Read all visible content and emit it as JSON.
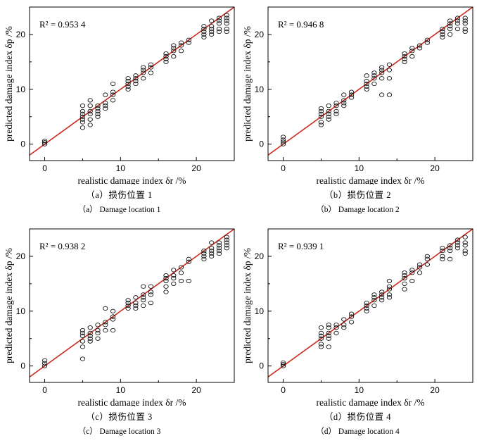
{
  "chart_data": [
    {
      "type": "scatter",
      "xlabel": "realistic damage index δr /%",
      "ylabel": "predicted damage index δp /%",
      "xlim": [
        -2,
        25
      ],
      "ylim": [
        -3,
        25
      ],
      "xticks": [
        0,
        10,
        20
      ],
      "yticks": [
        0,
        10,
        20
      ],
      "r2_label": "R² = 0.953 4",
      "caption_cn": "（a）损伤位置 1",
      "caption_en": "（a） Damage location 1",
      "fit_line": {
        "x": [
          -2,
          25
        ],
        "y": [
          -2,
          25
        ],
        "color": "#cc2a1e"
      },
      "x": [
        0,
        0,
        0,
        5,
        5,
        5,
        5,
        5,
        5,
        5,
        6,
        6,
        6,
        6,
        6,
        6,
        7,
        7,
        7,
        7,
        7,
        8,
        8,
        8,
        8,
        9,
        9,
        9,
        9,
        11,
        11,
        11,
        11,
        11,
        12,
        12,
        12,
        12,
        13,
        13,
        13,
        13,
        14,
        14,
        14,
        16,
        16,
        16,
        16,
        17,
        17,
        17,
        17,
        18,
        18,
        18,
        19,
        19,
        21,
        21,
        21,
        21,
        21,
        22,
        22,
        22,
        22,
        22,
        23,
        23,
        23,
        23,
        23,
        24,
        24,
        24,
        24,
        24,
        24
      ],
      "y": [
        0,
        0.3,
        0.6,
        3,
        4,
        4.5,
        5,
        5.5,
        6,
        7,
        3.5,
        4.5,
        5.5,
        6,
        7,
        8,
        5,
        5.5,
        6,
        6.5,
        7,
        6.5,
        7,
        7.5,
        9,
        8,
        9,
        9.5,
        11,
        10,
        10.5,
        11,
        11.5,
        12,
        11,
        11.5,
        12,
        12.5,
        12,
        13,
        13.5,
        14,
        13,
        14,
        14.5,
        15,
        15.5,
        16,
        16.5,
        16,
        17,
        17.5,
        18,
        17,
        18,
        18.5,
        18.5,
        19,
        19.5,
        20,
        20.5,
        21,
        21.5,
        20,
        20.5,
        21,
        21.5,
        22.5,
        20.5,
        21,
        22,
        22.5,
        23,
        20.5,
        21,
        22,
        22.5,
        23,
        23.5
      ]
    },
    {
      "type": "scatter",
      "xlabel": "realistic damage index δr /%",
      "ylabel": "predicted damage index δp /%",
      "xlim": [
        -2,
        25
      ],
      "ylim": [
        -3,
        25
      ],
      "xticks": [
        0,
        10,
        20
      ],
      "yticks": [
        0,
        10,
        20
      ],
      "r2_label": "R² = 0.946 8",
      "caption_cn": "（b）损伤位置 2",
      "caption_en": "（b） Damage location 2",
      "fit_line": {
        "x": [
          -2,
          25
        ],
        "y": [
          -2,
          25
        ],
        "color": "#cc2a1e"
      },
      "x": [
        0,
        0,
        0,
        0,
        5,
        5,
        5,
        5,
        5,
        5,
        6,
        6,
        6,
        6,
        6,
        7,
        7,
        7,
        7,
        8,
        8,
        8,
        8,
        9,
        9,
        9,
        11,
        11,
        11,
        11,
        11,
        12,
        12,
        12,
        12,
        13,
        13,
        13,
        13,
        13,
        14,
        14,
        14,
        14,
        16,
        16,
        16,
        16,
        17,
        17,
        17,
        18,
        18,
        19,
        19,
        21,
        21,
        21,
        21,
        22,
        22,
        22,
        22,
        22,
        23,
        23,
        23,
        23,
        24,
        24,
        24,
        24,
        24
      ],
      "y": [
        0,
        0.4,
        0.8,
        1.3,
        3.5,
        4,
        5,
        5.5,
        6,
        6.5,
        4.5,
        5,
        5.5,
        6,
        7,
        5.5,
        6,
        7,
        7.5,
        7,
        7.5,
        8,
        9,
        8.5,
        9,
        9.5,
        10,
        10.5,
        11,
        11.5,
        12.5,
        11,
        12,
        12.5,
        13,
        9,
        12,
        13,
        13.5,
        14,
        9,
        12,
        13.5,
        14.5,
        15,
        15.5,
        16,
        16.5,
        16,
        17,
        17.5,
        17.5,
        18,
        18.5,
        19,
        19.5,
        20,
        20.5,
        21,
        20,
        21,
        21.5,
        22,
        22.5,
        21,
        22,
        22.5,
        23,
        20.5,
        21,
        22,
        22.5,
        23
      ]
    },
    {
      "type": "scatter",
      "xlabel": "realistic damage index δr /%",
      "ylabel": "predicted damage index δp /%",
      "xlim": [
        -2,
        25
      ],
      "ylim": [
        -3,
        25
      ],
      "xticks": [
        0,
        10,
        20
      ],
      "yticks": [
        0,
        10,
        20
      ],
      "r2_label": "R² = 0.938 2",
      "caption_cn": "（c）损伤位置 3",
      "caption_en": "（c） Damage location 3",
      "fit_line": {
        "x": [
          -2,
          25
        ],
        "y": [
          -2,
          25
        ],
        "color": "#cc2a1e"
      },
      "x": [
        0,
        0,
        0,
        5,
        5,
        5,
        5,
        5,
        5,
        6,
        6,
        6,
        6,
        6,
        7,
        7,
        7,
        7,
        8,
        8,
        8,
        8,
        9,
        9,
        9,
        9,
        11,
        11,
        11,
        11,
        12,
        12,
        12,
        12,
        13,
        13,
        13,
        13,
        13,
        14,
        14,
        14,
        14,
        16,
        16,
        16,
        16,
        16,
        17,
        17,
        17,
        17,
        18,
        18,
        18,
        19,
        19,
        19,
        21,
        21,
        21,
        21,
        22,
        22,
        22,
        22,
        22,
        23,
        23,
        23,
        23,
        23,
        24,
        24,
        24,
        24,
        24
      ],
      "y": [
        0,
        0.5,
        1,
        1.3,
        3.5,
        4.5,
        5.5,
        6,
        6.5,
        4.5,
        5,
        5.5,
        6,
        7,
        5,
        6,
        6.5,
        7.5,
        6.5,
        7.5,
        8,
        10.5,
        6.5,
        8.5,
        9,
        10,
        10.5,
        11,
        11.5,
        12,
        10.5,
        11,
        11.5,
        12.5,
        11,
        12,
        12.5,
        13,
        14.5,
        11.5,
        13,
        13.5,
        14.5,
        13.5,
        14.5,
        15.5,
        16,
        16.5,
        15,
        16,
        16.5,
        17.5,
        15.5,
        17,
        18,
        15.5,
        19,
        19.5,
        19.5,
        20,
        20.5,
        21,
        20,
        20.5,
        21,
        21.5,
        22.5,
        20.5,
        21,
        21.5,
        22,
        22.5,
        21.5,
        22,
        22.5,
        23,
        23.5
      ]
    },
    {
      "type": "scatter",
      "xlabel": "realistic damage index δr /%",
      "ylabel": "predicted damage index δp /%",
      "xlim": [
        -2,
        25
      ],
      "ylim": [
        -3,
        25
      ],
      "xticks": [
        0,
        10,
        20
      ],
      "yticks": [
        0,
        10,
        20
      ],
      "r2_label": "R² = 0.939 1",
      "caption_cn": "（d）损伤位置 4",
      "caption_en": "（d） Damage location 4",
      "fit_line": {
        "x": [
          -2,
          25
        ],
        "y": [
          -2,
          25
        ],
        "color": "#cc2a1e"
      },
      "x": [
        0,
        0,
        0,
        5,
        5,
        5,
        5,
        5,
        5,
        6,
        6,
        6,
        6,
        6,
        6,
        7,
        7,
        7,
        8,
        8,
        8,
        9,
        9,
        9,
        11,
        11,
        11,
        11,
        12,
        12,
        12,
        12,
        13,
        13,
        13,
        13,
        14,
        14,
        14,
        14,
        14,
        16,
        16,
        16,
        16,
        16,
        17,
        17,
        17,
        18,
        18,
        18,
        19,
        19,
        19,
        21,
        21,
        21,
        21,
        22,
        22,
        22,
        22,
        23,
        23,
        23,
        23,
        24,
        24,
        24,
        24,
        24
      ],
      "y": [
        0,
        0.3,
        0.6,
        3.5,
        4,
        5,
        5.5,
        6,
        7,
        3.5,
        5,
        5.5,
        6,
        7,
        7.5,
        6,
        7,
        7.5,
        7,
        7.5,
        8.5,
        8,
        9,
        9.5,
        10,
        10.5,
        11,
        11.5,
        11,
        12,
        12.5,
        13,
        12,
        12.5,
        13,
        13.5,
        12.5,
        13,
        14,
        14.5,
        15.5,
        14,
        15,
        16,
        16.5,
        17,
        15.5,
        17,
        17.5,
        17,
        18,
        18.5,
        18.5,
        19.5,
        20,
        19.5,
        20,
        21,
        21.5,
        19.5,
        21,
        21.5,
        22,
        21.5,
        22,
        22.5,
        23,
        20.5,
        21,
        22,
        22.5,
        23.5
      ]
    }
  ]
}
